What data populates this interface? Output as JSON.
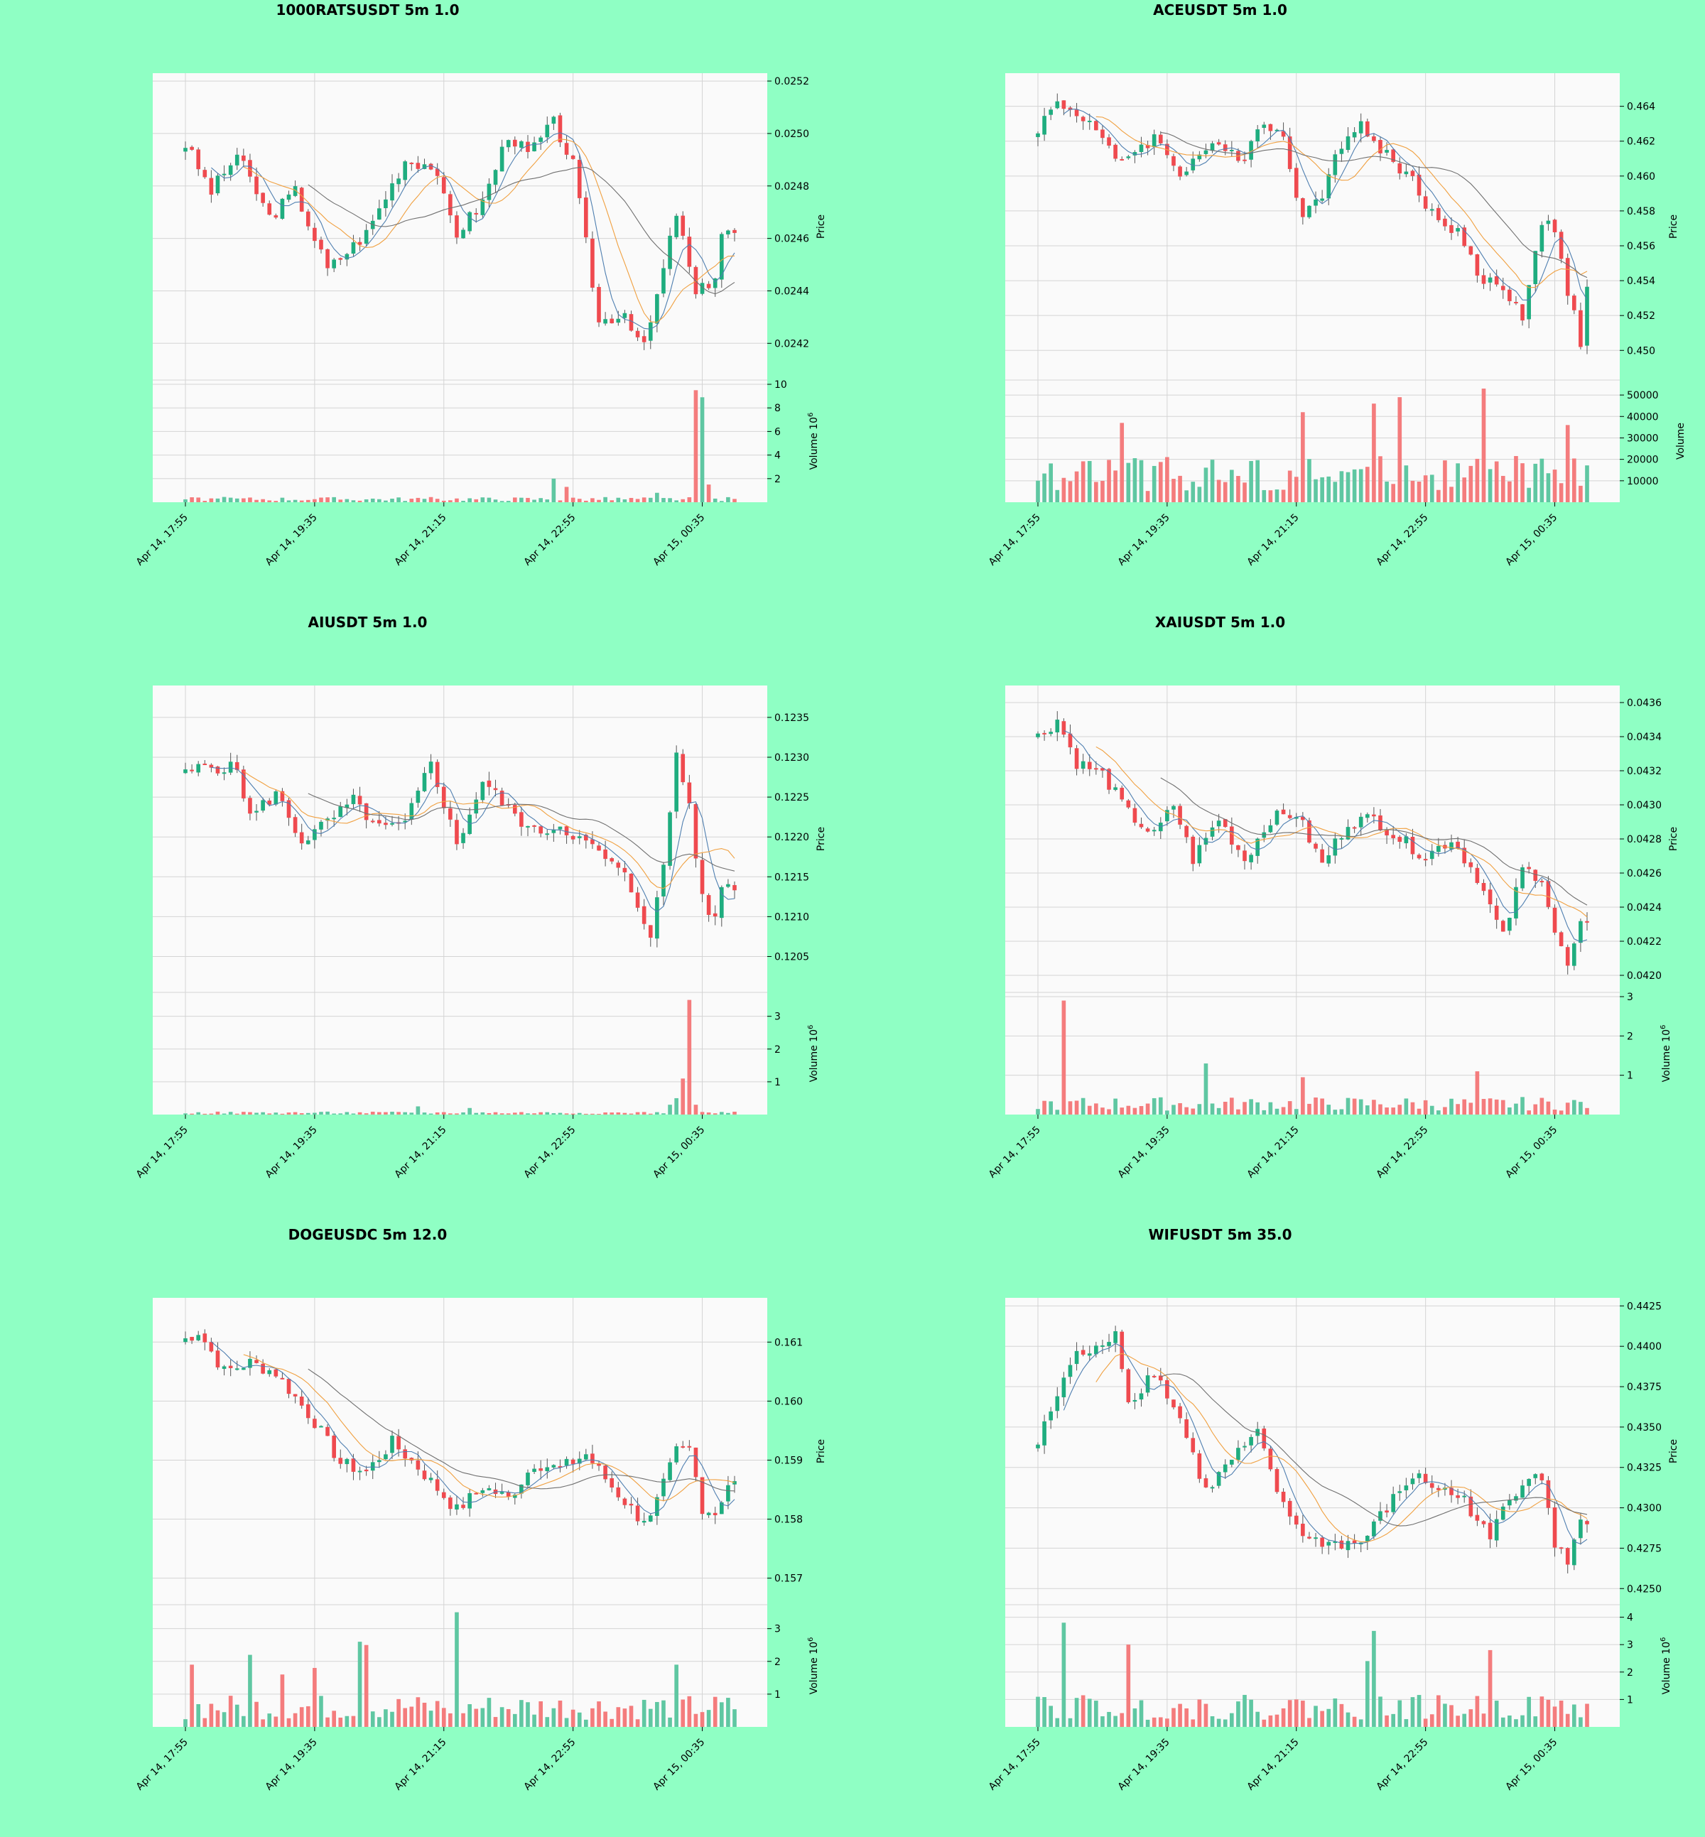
{
  "colors": {
    "background": "#8fffc4",
    "panel": "#fafafa",
    "grid": "#d4d4d4",
    "up": "#1fad7f",
    "down": "#ef4a4f",
    "volume_up": "#5fc7a2",
    "volume_down": "#f47c7d",
    "ma_fast": "#4f7fb0",
    "ma_mid": "#f0a040",
    "ma_slow": "#707070"
  },
  "axis_labels": {
    "price": "Price",
    "volume": "Volume"
  },
  "chart_data": [
    {
      "type": "candlestick",
      "title": "1000RATSUSDT 5m 1.0",
      "x_ticks": [
        "Apr 14, 17:55",
        "Apr 14, 19:35",
        "Apr 14, 21:15",
        "Apr 14, 22:55",
        "Apr 15, 00:35"
      ],
      "ylim": [
        0.02406,
        0.02523
      ],
      "price_ticks": [
        "0.0252",
        "0.0250",
        "0.0248",
        "0.0246",
        "0.0244",
        "0.0242"
      ],
      "volume_multiplier": "10^6",
      "volume_max": 10,
      "volume_ticks": [
        "2",
        "4",
        "6",
        "8",
        "10"
      ],
      "series": [
        {
          "waypoints": [
            [
              0,
              0.02496
            ],
            [
              4,
              0.02478
            ],
            [
              8,
              0.02492
            ],
            [
              13,
              0.02468
            ],
            [
              17,
              0.02478
            ],
            [
              22,
              0.02448
            ],
            [
              28,
              0.02462
            ],
            [
              34,
              0.0249
            ],
            [
              38,
              0.02488
            ],
            [
              42,
              0.02462
            ],
            [
              46,
              0.02474
            ],
            [
              50,
              0.025
            ],
            [
              53,
              0.02492
            ],
            [
              57,
              0.02504
            ],
            [
              60,
              0.02488
            ],
            [
              64,
              0.02428
            ],
            [
              68,
              0.02432
            ],
            [
              71,
              0.02418
            ],
            [
              74,
              0.02448
            ],
            [
              76,
              0.0247
            ],
            [
              79,
              0.02438
            ],
            [
              82,
              0.02446
            ],
            [
              83,
              0.02462
            ]
          ],
          "volume_base": 0.25,
          "volume_spikes": [
            [
              57,
              2.0
            ],
            [
              59,
              1.3
            ],
            [
              73,
              0.8
            ],
            [
              79,
              9.5
            ],
            [
              80,
              8.9
            ],
            [
              81,
              1.5
            ]
          ]
        }
      ]
    },
    {
      "type": "candlestick",
      "title": "ACEUSDT 5m 1.0",
      "x_ticks": [
        "Apr 14, 17:55",
        "Apr 14, 19:35",
        "Apr 14, 21:15",
        "Apr 14, 22:55",
        "Apr 15, 00:35"
      ],
      "ylim": [
        0.4483,
        0.4659
      ],
      "price_ticks": [
        "0.464",
        "0.462",
        "0.460",
        "0.458",
        "0.456",
        "0.454",
        "0.452",
        "0.450"
      ],
      "volume_multiplier": "",
      "volume_max": 55000,
      "volume_ticks": [
        "10000",
        "20000",
        "30000",
        "40000",
        "50000"
      ],
      "series": [
        {
          "waypoints": [
            [
              0,
              0.4628
            ],
            [
              3,
              0.4642
            ],
            [
              8,
              0.4632
            ],
            [
              12,
              0.4608
            ],
            [
              18,
              0.4622
            ],
            [
              22,
              0.4602
            ],
            [
              26,
              0.4616
            ],
            [
              32,
              0.4612
            ],
            [
              34,
              0.463
            ],
            [
              38,
              0.4624
            ],
            [
              41,
              0.4575
            ],
            [
              44,
              0.459
            ],
            [
              46,
              0.4616
            ],
            [
              50,
              0.4628
            ],
            [
              54,
              0.4612
            ],
            [
              58,
              0.4598
            ],
            [
              62,
              0.4572
            ],
            [
              65,
              0.457
            ],
            [
              68,
              0.4542
            ],
            [
              72,
              0.4536
            ],
            [
              75,
              0.452
            ],
            [
              78,
              0.4575
            ],
            [
              80,
              0.4568
            ],
            [
              82,
              0.4535
            ],
            [
              84,
              0.4505
            ],
            [
              85,
              0.4538
            ]
          ],
          "volume_base": 12000,
          "volume_spikes": [
            [
              13,
              37000
            ],
            [
              41,
              42000
            ],
            [
              52,
              46000
            ],
            [
              56,
              49000
            ],
            [
              69,
              53000
            ],
            [
              82,
              36000
            ]
          ]
        }
      ]
    },
    {
      "type": "candlestick",
      "title": "AIUSDT 5m 1.0",
      "x_ticks": [
        "Apr 14, 17:55",
        "Apr 14, 19:35",
        "Apr 14, 21:15",
        "Apr 14, 22:55",
        "Apr 15, 00:35"
      ],
      "ylim": [
        0.12005,
        0.1239
      ],
      "price_ticks": [
        "0.1235",
        "0.1230",
        "0.1225",
        "0.1220",
        "0.1215",
        "0.1210",
        "0.1205"
      ],
      "volume_multiplier": "10^6",
      "volume_max": 3.6,
      "volume_ticks": [
        "1",
        "2",
        "3"
      ],
      "series": [
        {
          "waypoints": [
            [
              0,
              0.12278
            ],
            [
              3,
              0.1229
            ],
            [
              8,
              0.12285
            ],
            [
              10,
              0.12225
            ],
            [
              14,
              0.12255
            ],
            [
              18,
              0.12195
            ],
            [
              22,
              0.12218
            ],
            [
              26,
              0.12245
            ],
            [
              30,
              0.1221
            ],
            [
              34,
              0.12215
            ],
            [
              38,
              0.12295
            ],
            [
              42,
              0.1219
            ],
            [
              46,
              0.1227
            ],
            [
              50,
              0.12235
            ],
            [
              54,
              0.12205
            ],
            [
              58,
              0.12215
            ],
            [
              64,
              0.1218
            ],
            [
              68,
              0.1215
            ],
            [
              72,
              0.1208
            ],
            [
              74,
              0.1216
            ],
            [
              76,
              0.12305
            ],
            [
              78,
              0.1224
            ],
            [
              80,
              0.1212
            ],
            [
              82,
              0.12095
            ],
            [
              83,
              0.1214
            ]
          ],
          "volume_base": 0.05,
          "volume_spikes": [
            [
              36,
              0.25
            ],
            [
              44,
              0.2
            ],
            [
              75,
              0.3
            ],
            [
              76,
              0.5
            ],
            [
              77,
              1.1
            ],
            [
              78,
              3.5
            ],
            [
              79,
              0.3
            ]
          ]
        }
      ]
    },
    {
      "type": "candlestick",
      "title": "XAIUSDT 5m 1.0",
      "x_ticks": [
        "Apr 14, 17:55",
        "Apr 14, 19:35",
        "Apr 14, 21:15",
        "Apr 14, 22:55",
        "Apr 15, 00:35"
      ],
      "ylim": [
        0.0419,
        0.0437
      ],
      "price_ticks": [
        "0.0436",
        "0.0434",
        "0.0432",
        "0.0430",
        "0.0428",
        "0.0426",
        "0.0424",
        "0.0422",
        "0.0420"
      ],
      "volume_multiplier": "10^6",
      "volume_max": 3.0,
      "volume_ticks": [
        "1",
        "2",
        "3"
      ],
      "series": [
        {
          "waypoints": [
            [
              0,
              0.0434
            ],
            [
              3,
              0.0435
            ],
            [
              6,
              0.04325
            ],
            [
              10,
              0.04318
            ],
            [
              14,
              0.04295
            ],
            [
              18,
              0.04282
            ],
            [
              21,
              0.043
            ],
            [
              24,
              0.04268
            ],
            [
              28,
              0.04292
            ],
            [
              32,
              0.04268
            ],
            [
              36,
              0.04292
            ],
            [
              40,
              0.04295
            ],
            [
              44,
              0.04265
            ],
            [
              48,
              0.0429
            ],
            [
              52,
              0.04292
            ],
            [
              56,
              0.0428
            ],
            [
              60,
              0.0427
            ],
            [
              64,
              0.0428
            ],
            [
              68,
              0.04258
            ],
            [
              72,
              0.04222
            ],
            [
              75,
              0.04262
            ],
            [
              78,
              0.04258
            ],
            [
              80,
              0.04225
            ],
            [
              82,
              0.04205
            ],
            [
              84,
              0.04228
            ]
          ],
          "volume_base": 0.25,
          "volume_spikes": [
            [
              4,
              2.9
            ],
            [
              26,
              1.3
            ],
            [
              41,
              0.95
            ],
            [
              68,
              1.1
            ]
          ]
        }
      ]
    },
    {
      "type": "candlestick",
      "title": "DOGEUSDC 5m 12.0",
      "x_ticks": [
        "Apr 14, 17:55",
        "Apr 14, 19:35",
        "Apr 14, 21:15",
        "Apr 14, 22:55",
        "Apr 15, 00:35"
      ],
      "ylim": [
        0.15655,
        0.16175
      ],
      "price_ticks": [
        "0.161",
        "0.160",
        "0.159",
        "0.158",
        "0.157"
      ],
      "volume_multiplier": "10^6",
      "volume_max": 3.6,
      "volume_ticks": [
        "1",
        "2",
        "3"
      ],
      "series": [
        {
          "waypoints": [
            [
              0,
              0.16105
            ],
            [
              2,
              0.16118
            ],
            [
              6,
              0.1605
            ],
            [
              10,
              0.16065
            ],
            [
              14,
              0.16048
            ],
            [
              20,
              0.15965
            ],
            [
              24,
              0.15895
            ],
            [
              28,
              0.1588
            ],
            [
              32,
              0.1593
            ],
            [
              36,
              0.15888
            ],
            [
              42,
              0.15815
            ],
            [
              46,
              0.15855
            ],
            [
              50,
              0.15835
            ],
            [
              54,
              0.15895
            ],
            [
              58,
              0.15885
            ],
            [
              62,
              0.1591
            ],
            [
              66,
              0.15855
            ],
            [
              70,
              0.15805
            ],
            [
              72,
              0.158
            ],
            [
              76,
              0.15915
            ],
            [
              78,
              0.1592
            ],
            [
              80,
              0.1582
            ],
            [
              82,
              0.1581
            ],
            [
              84,
              0.1586
            ]
          ],
          "volume_base": 0.55,
          "volume_spikes": [
            [
              1,
              1.9
            ],
            [
              10,
              2.2
            ],
            [
              15,
              1.6
            ],
            [
              20,
              1.8
            ],
            [
              27,
              2.6
            ],
            [
              28,
              2.5
            ],
            [
              42,
              3.5
            ],
            [
              76,
              1.9
            ]
          ]
        }
      ]
    },
    {
      "type": "candlestick",
      "title": "WIFUSDT 5m 35.0",
      "x_ticks": [
        "Apr 14, 17:55",
        "Apr 14, 19:35",
        "Apr 14, 21:15",
        "Apr 14, 22:55",
        "Apr 15, 00:35"
      ],
      "ylim": [
        0.424,
        0.443
      ],
      "price_ticks": [
        "0.4425",
        "0.4400",
        "0.4375",
        "0.4350",
        "0.4325",
        "0.4300",
        "0.4275",
        "0.4250"
      ],
      "volume_multiplier": "10^6",
      "volume_max": 4.3,
      "volume_ticks": [
        "1",
        "2",
        "3",
        "4"
      ],
      "series": [
        {
          "waypoints": [
            [
              0,
              0.434
            ],
            [
              4,
              0.438
            ],
            [
              6,
              0.4395
            ],
            [
              10,
              0.4398
            ],
            [
              12,
              0.4412
            ],
            [
              14,
              0.4365
            ],
            [
              18,
              0.4385
            ],
            [
              22,
              0.4355
            ],
            [
              26,
              0.431
            ],
            [
              30,
              0.433
            ],
            [
              34,
              0.4345
            ],
            [
              38,
              0.43
            ],
            [
              42,
              0.428
            ],
            [
              46,
              0.4278
            ],
            [
              50,
              0.4278
            ],
            [
              54,
              0.43
            ],
            [
              58,
              0.432
            ],
            [
              62,
              0.4312
            ],
            [
              66,
              0.4305
            ],
            [
              70,
              0.428
            ],
            [
              72,
              0.43
            ],
            [
              76,
              0.4322
            ],
            [
              78,
              0.432
            ],
            [
              80,
              0.4275
            ],
            [
              82,
              0.4268
            ],
            [
              84,
              0.429
            ]
          ],
          "volume_base": 0.65,
          "volume_spikes": [
            [
              4,
              3.8
            ],
            [
              14,
              3.0
            ],
            [
              52,
              3.5
            ],
            [
              51,
              2.4
            ],
            [
              70,
              2.8
            ]
          ]
        }
      ]
    }
  ]
}
